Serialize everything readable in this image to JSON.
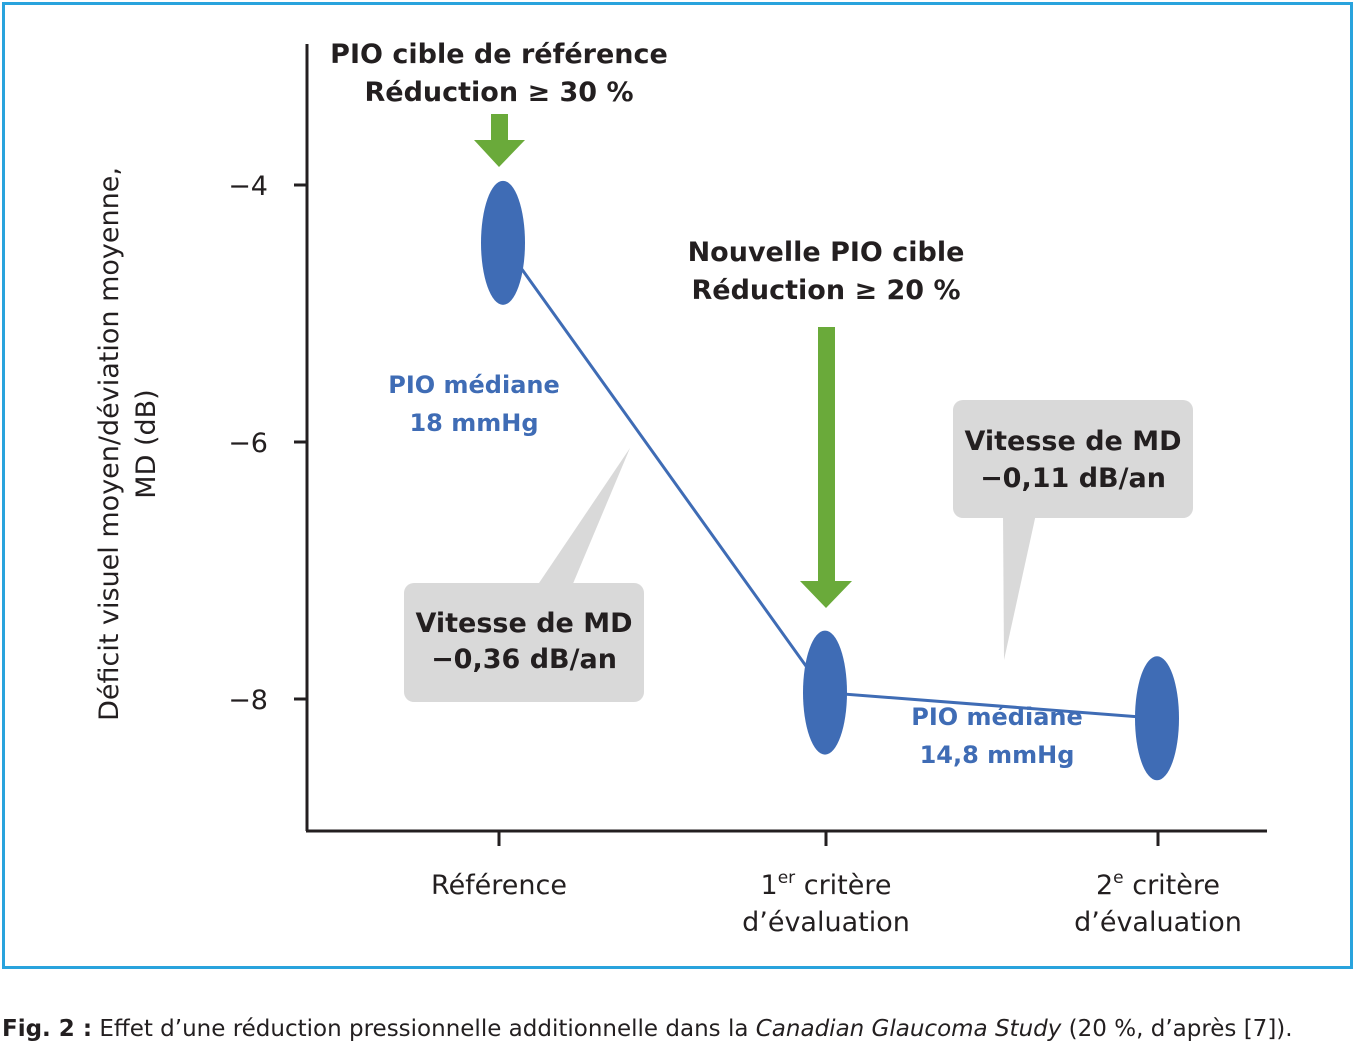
{
  "chart_data": {
    "type": "line",
    "ylabel_line1": "Déficit visuel moyen/déviation moyenne,",
    "ylabel_line2": "MD (dB)",
    "yticks": [
      -4,
      -6,
      -8
    ],
    "ytick_labels": [
      "−4",
      "−6",
      "−8"
    ],
    "ylim": [
      -9,
      -3
    ],
    "categories": [
      {
        "line1": "Référence",
        "sup": "",
        "line1_rest": "",
        "line2": ""
      },
      {
        "line1": "1",
        "sup": "er",
        "line1_rest": " critère",
        "line2": "d’évaluation"
      },
      {
        "line1": "2",
        "sup": "e",
        "line1_rest": " critère",
        "line2": "d’évaluation"
      }
    ],
    "series": [
      {
        "values": [
          -4.45,
          -7.95,
          -8.15
        ],
        "color": "#3f6cb5"
      }
    ],
    "annotations": {
      "target_ref": {
        "line1": "PIO cible de référence",
        "line2": "Réduction ≥ 30 %"
      },
      "target_new": {
        "line1": "Nouvelle PIO cible",
        "line2": "Réduction ≥ 20 %"
      },
      "median_1": {
        "line1": "PIO médiane",
        "line2": "18 mmHg"
      },
      "median_2": {
        "line1": "PIO médiane",
        "line2": "14,8 mmHg"
      },
      "rate_1": {
        "line1": "Vitesse de MD",
        "line2": "−0,36 dB/an"
      },
      "rate_2": {
        "line1": "Vitesse de MD",
        "line2": "−0,11 dB/an"
      }
    },
    "colors": {
      "marker": "#3f6cb5",
      "arrow": "#6aaa3a",
      "callout": "#d9d9d9",
      "axis": "#231f20",
      "frame": "#29a3dd"
    }
  },
  "caption": {
    "label": "Fig. 2 :",
    "text_before": " Effet d’une réduction pressionnelle additionnelle dans la ",
    "italic": "Canadian Glaucoma Study",
    "text_after": " (20 %, d’après [7])."
  }
}
